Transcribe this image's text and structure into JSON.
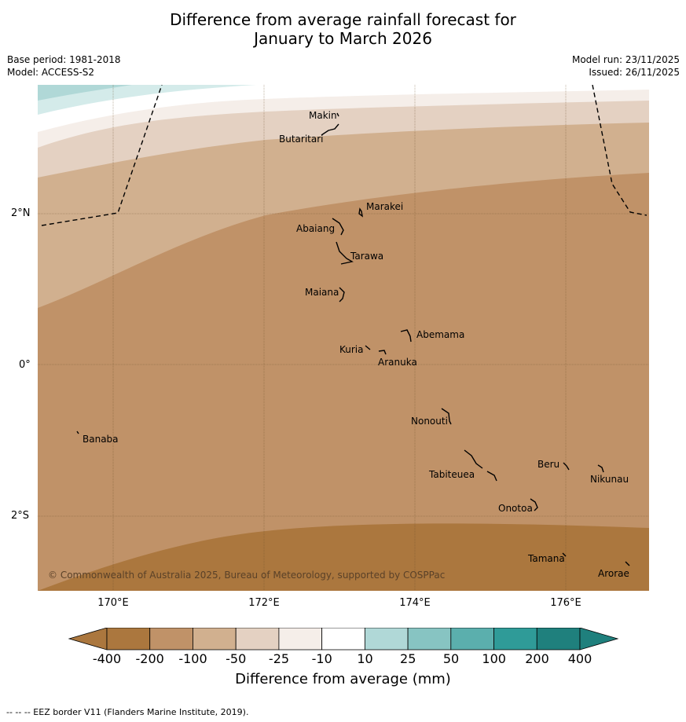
{
  "title_line1": "Difference from average rainfall forecast for",
  "title_line2": "January to March 2026",
  "base_period": "Base period: 1981-2018",
  "model": "Model: ACCESS-S2",
  "model_run": "Model run: 23/11/2025",
  "issued": "Issued: 26/11/2025",
  "lat_labels": [
    "2°N",
    "0°",
    "2°S"
  ],
  "lon_labels": [
    "170°E",
    "172°E",
    "174°E",
    "176°E"
  ],
  "places": [
    "Makin",
    "Butaritari",
    "Marakei",
    "Abaiang",
    "Tarawa",
    "Maiana",
    "Abemama",
    "Kuria",
    "Aranuka",
    "Nonouti",
    "Banaba",
    "Beru",
    "Tabiteuea",
    "Nikunau",
    "Onotoa",
    "Tamana",
    "Arorae"
  ],
  "copyright": "© Commonwealth of Australia 2025, Bureau of Meteorology, supported by COSPPac",
  "colorbar": {
    "ticks": [
      "-400",
      "-200",
      "-100",
      "-50",
      "-25",
      "-10",
      "10",
      "25",
      "50",
      "100",
      "200",
      "400"
    ],
    "colors": [
      "#ab773e",
      "#c09268",
      "#d1b08f",
      "#e4d1c2",
      "#f5eee9",
      "#ffffff",
      "#d4ebea",
      "#b0d8d7",
      "#87c4c2",
      "#5bafad",
      "#2f9b98",
      "#1f807d"
    ],
    "label": "Difference from average (mm)"
  },
  "footnote": "--  --  -- EEZ border V11 (Flanders Marine Institute, 2019)."
}
